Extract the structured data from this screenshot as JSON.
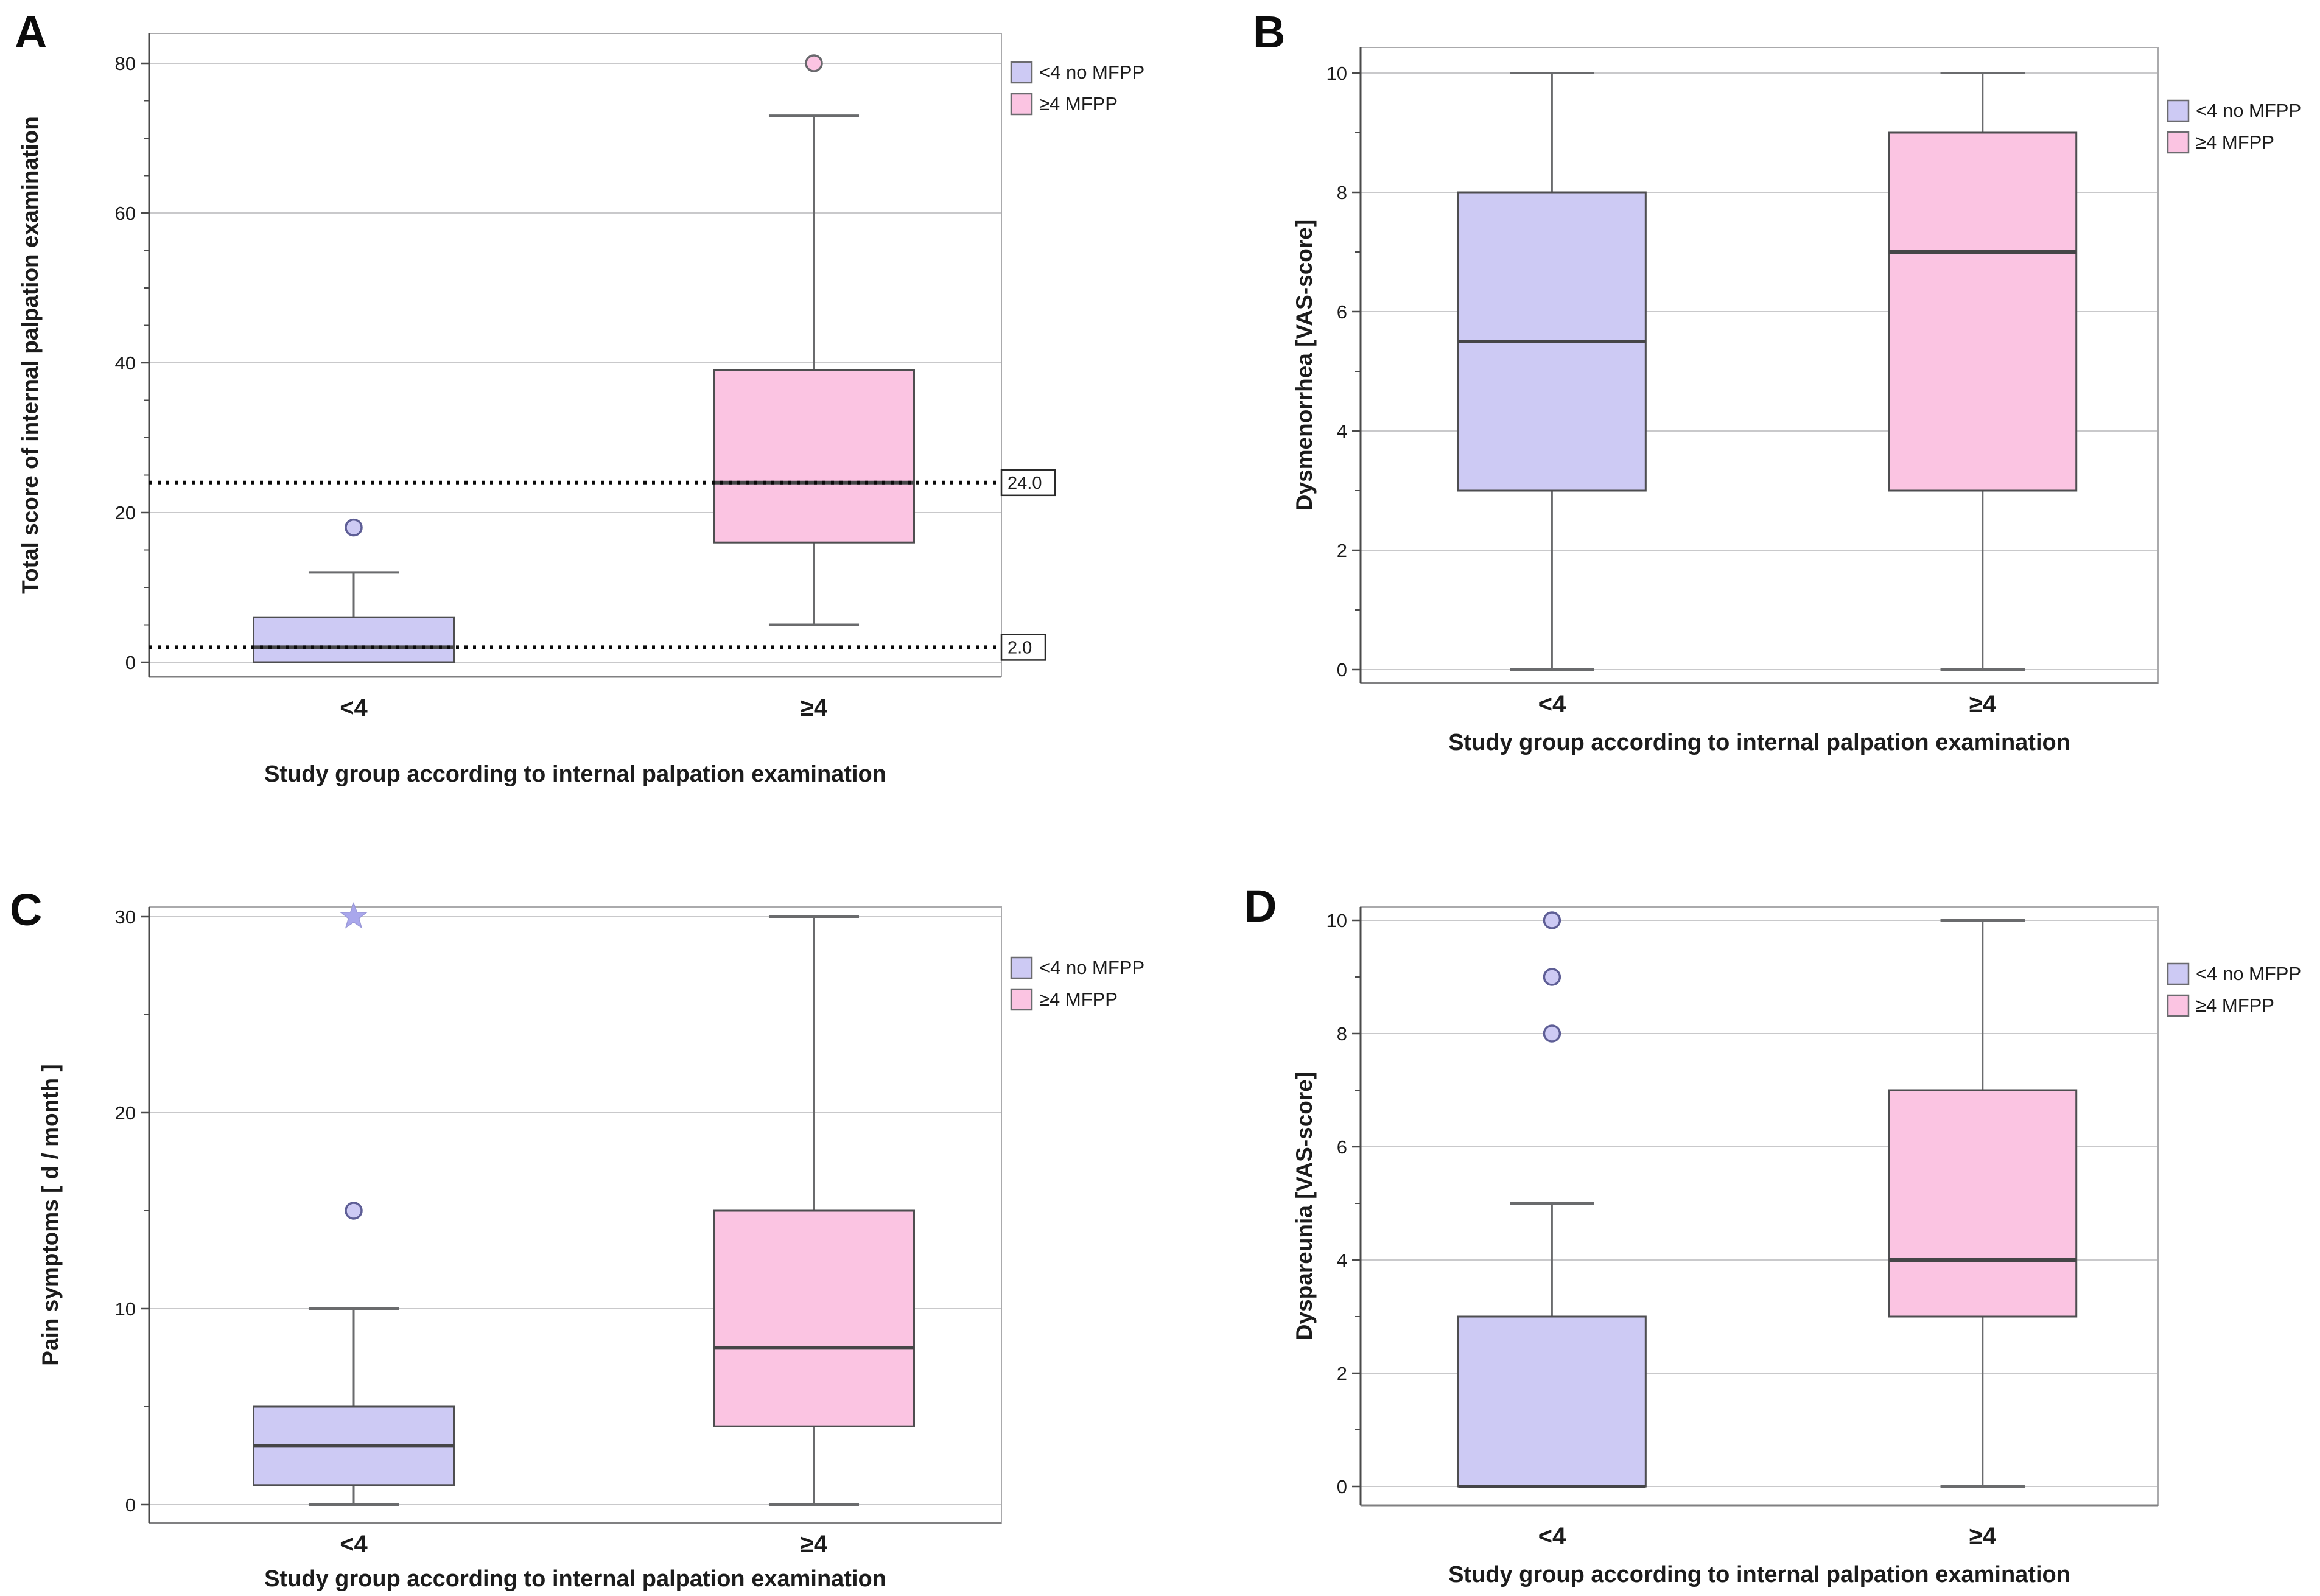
{
  "page": {
    "background": "#ffffff"
  },
  "legend": {
    "position": "top-right",
    "items": [
      {
        "label": "<4 no MFPP",
        "color_key": "blue"
      },
      {
        "label": "≥4 MFPP",
        "color_key": "pink"
      }
    ]
  },
  "colors": {
    "blue": "#cdcaf4",
    "pink": "#fbc4e2",
    "blue_outlier_stroke": "#5e5e96",
    "pink_outlier_stroke": "#68686c",
    "extreme": "#a9a7ec",
    "box_stroke": "#4e4e50",
    "median": "#454547",
    "whisker": "#6a6b6d",
    "grid": "#c9c9cb",
    "axis": "#4a4a4a",
    "frame": "#aaaaac",
    "frame_bottom": "#808082",
    "ref_line": "#0a0a0a",
    "text": "#1c1c1c"
  },
  "chart_data": [
    {
      "panel": "A",
      "type": "boxplot",
      "title": "",
      "ylabel": "Total score of internal palpation examination",
      "xlabel": "Study group according to internal palpation examination",
      "categories": [
        "<4",
        "≥4"
      ],
      "ylim": [
        0,
        80
      ],
      "yticks": [
        0,
        20,
        40,
        60,
        80
      ],
      "minor_tick_step": 5,
      "grid": true,
      "series": [
        {
          "name": "<4 no MFPP",
          "category": "<4",
          "color_key": "blue",
          "q1": 0,
          "median": 2,
          "q3": 6,
          "whisker_low": 0,
          "whisker_high": 12,
          "outliers": [
            18
          ],
          "extremes": []
        },
        {
          "name": "≥4 MFPP",
          "category": "≥4",
          "color_key": "pink",
          "q1": 16,
          "median": 24,
          "q3": 39,
          "whisker_low": 5,
          "whisker_high": 73,
          "outliers": [
            80
          ],
          "extremes": []
        }
      ],
      "reference_lines": [
        {
          "value": 24,
          "label": "24.0"
        },
        {
          "value": 2,
          "label": "2.0"
        }
      ]
    },
    {
      "panel": "B",
      "type": "boxplot",
      "title": "",
      "ylabel": "Dysmenorrhea [VAS-score]",
      "xlabel": "Study group according to internal palpation examination",
      "categories": [
        "<4",
        "≥4"
      ],
      "ylim": [
        0,
        10
      ],
      "yticks": [
        0,
        2,
        4,
        6,
        8,
        10
      ],
      "minor_tick_step": 1,
      "grid": true,
      "series": [
        {
          "name": "<4 no MFPP",
          "category": "<4",
          "color_key": "blue",
          "q1": 3,
          "median": 5.5,
          "q3": 8,
          "whisker_low": 0,
          "whisker_high": 10,
          "outliers": [],
          "extremes": []
        },
        {
          "name": "≥4 MFPP",
          "category": "≥4",
          "color_key": "pink",
          "q1": 3,
          "median": 7,
          "q3": 9,
          "whisker_low": 0,
          "whisker_high": 10,
          "outliers": [],
          "extremes": []
        }
      ],
      "reference_lines": []
    },
    {
      "panel": "C",
      "type": "boxplot",
      "title": "",
      "ylabel": "Pain symptoms [ d / month ]",
      "xlabel": "Study group according to internal palpation examination",
      "categories": [
        "<4",
        "≥4"
      ],
      "ylim": [
        0,
        30
      ],
      "yticks": [
        0,
        10,
        20,
        30
      ],
      "minor_tick_step": 5,
      "grid": true,
      "series": [
        {
          "name": "<4 no MFPP",
          "category": "<4",
          "color_key": "blue",
          "q1": 1,
          "median": 3,
          "q3": 5,
          "whisker_low": 0,
          "whisker_high": 10,
          "outliers": [
            15
          ],
          "extremes": [
            30
          ]
        },
        {
          "name": "≥4 MFPP",
          "category": "≥4",
          "color_key": "pink",
          "q1": 4,
          "median": 8,
          "q3": 15,
          "whisker_low": 0,
          "whisker_high": 30,
          "outliers": [],
          "extremes": []
        }
      ],
      "reference_lines": []
    },
    {
      "panel": "D",
      "type": "boxplot",
      "title": "",
      "ylabel": "Dyspareunia [VAS-score]",
      "xlabel": "Study group according to internal palpation examination",
      "categories": [
        "<4",
        "≥4"
      ],
      "ylim": [
        0,
        10
      ],
      "yticks": [
        0,
        2,
        4,
        6,
        8,
        10
      ],
      "minor_tick_step": 1,
      "grid": true,
      "series": [
        {
          "name": "<4 no MFPP",
          "category": "<4",
          "color_key": "blue",
          "q1": 0,
          "median": 0,
          "q3": 3,
          "whisker_low": 0,
          "whisker_high": 5,
          "outliers": [
            8,
            9,
            10
          ],
          "extremes": []
        },
        {
          "name": "≥4 MFPP",
          "category": "≥4",
          "color_key": "pink",
          "q1": 3,
          "median": 4,
          "q3": 7,
          "whisker_low": 0,
          "whisker_high": 10,
          "outliers": [],
          "extremes": []
        }
      ],
      "reference_lines": []
    }
  ]
}
